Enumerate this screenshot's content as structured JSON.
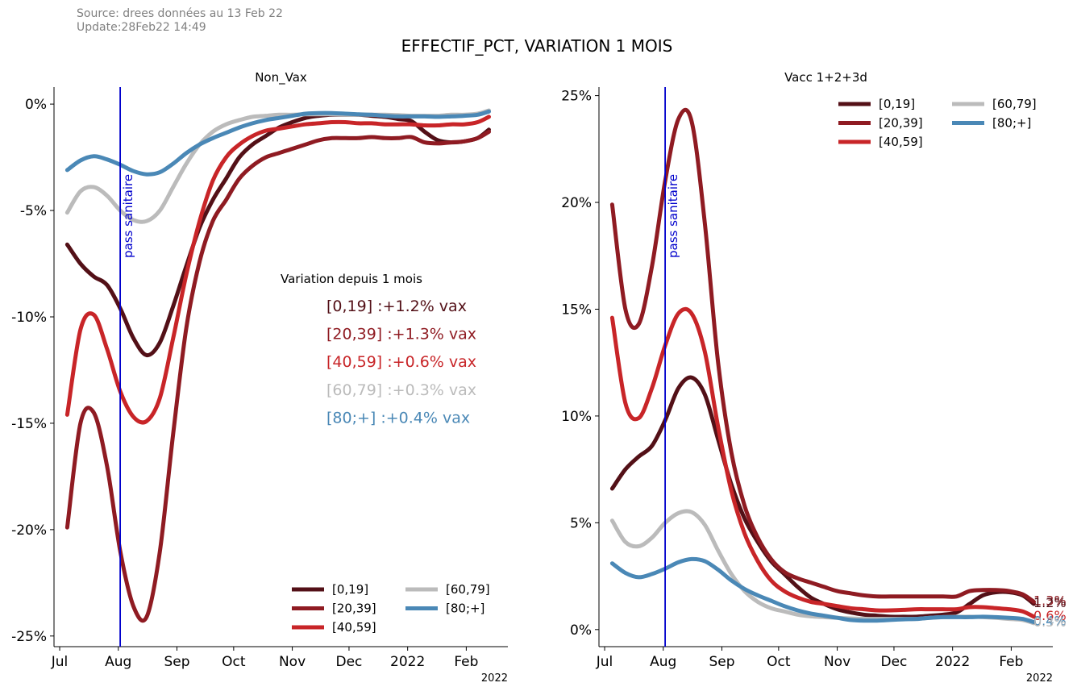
{
  "header": {
    "source": "Source: drees données au 13 Feb 22",
    "update": "Update:28Feb22 14:49",
    "title": "EFFECTIF_PCT, VARIATION 1 MOIS"
  },
  "x_ticks": [
    "Jul",
    "Aug",
    "Sep",
    "Oct",
    "Nov",
    "Dec",
    "2022",
    "Feb"
  ],
  "x_offset_label": "2022",
  "colors": {
    "[0,19]": "#531017",
    "[20,39]": "#8f1b22",
    "[40,59]": "#c82528",
    "[60,79]": "#bbbbbb",
    "[80;+]": "#4a88b6",
    "vline": "#0000cc"
  },
  "chart_data": [
    {
      "type": "line",
      "title": "Non_Vax",
      "x_dates": [
        "2021-07-05",
        "2021-07-12",
        "2021-07-19",
        "2021-07-26",
        "2021-08-02",
        "2021-08-09",
        "2021-08-16",
        "2021-08-23",
        "2021-08-30",
        "2021-09-06",
        "2021-09-13",
        "2021-09-20",
        "2021-09-27",
        "2021-10-04",
        "2021-10-11",
        "2021-10-18",
        "2021-10-25",
        "2021-11-01",
        "2021-11-08",
        "2021-11-15",
        "2021-11-22",
        "2021-11-29",
        "2021-12-06",
        "2021-12-13",
        "2021-12-20",
        "2021-12-27",
        "2022-01-03",
        "2022-01-10",
        "2022-01-17",
        "2022-01-24",
        "2022-01-31",
        "2022-02-07",
        "2022-02-13"
      ],
      "ylim": [
        -25.5,
        0.8
      ],
      "yticks": [
        0,
        -5,
        -10,
        -15,
        -20,
        -25
      ],
      "ytick_labels": [
        "0%",
        "-5%",
        "-10%",
        "-15%",
        "-20%",
        "-25%"
      ],
      "series": [
        {
          "name": "[0,19]",
          "values": [
            -6.6,
            -7.5,
            -8.1,
            -8.5,
            -9.6,
            -11.0,
            -11.8,
            -11.2,
            -9.5,
            -7.6,
            -5.8,
            -4.5,
            -3.5,
            -2.5,
            -1.9,
            -1.5,
            -1.1,
            -0.85,
            -0.65,
            -0.55,
            -0.5,
            -0.5,
            -0.5,
            -0.55,
            -0.6,
            -0.7,
            -0.8,
            -1.3,
            -1.7,
            -1.8,
            -1.75,
            -1.6,
            -1.2
          ]
        },
        {
          "name": "[20,39]",
          "values": [
            -19.9,
            -15.0,
            -14.5,
            -17.0,
            -21.0,
            -23.6,
            -24.1,
            -21.0,
            -15.5,
            -10.5,
            -7.4,
            -5.5,
            -4.5,
            -3.5,
            -2.9,
            -2.5,
            -2.3,
            -2.1,
            -1.9,
            -1.7,
            -1.6,
            -1.6,
            -1.6,
            -1.55,
            -1.6,
            -1.6,
            -1.55,
            -1.8,
            -1.85,
            -1.8,
            -1.75,
            -1.6,
            -1.3
          ]
        },
        {
          "name": "[40,59]",
          "values": [
            -14.6,
            -10.6,
            -9.9,
            -11.5,
            -13.5,
            -14.7,
            -14.9,
            -13.8,
            -11.0,
            -8.0,
            -5.5,
            -3.6,
            -2.5,
            -1.9,
            -1.5,
            -1.25,
            -1.15,
            -1.05,
            -0.95,
            -0.9,
            -0.85,
            -0.85,
            -0.9,
            -0.9,
            -0.95,
            -0.95,
            -0.95,
            -1.0,
            -1.0,
            -0.95,
            -0.95,
            -0.85,
            -0.6
          ]
        },
        {
          "name": "[60,79]",
          "values": [
            -5.1,
            -4.1,
            -3.9,
            -4.3,
            -5.0,
            -5.45,
            -5.5,
            -5.0,
            -3.9,
            -2.8,
            -1.9,
            -1.3,
            -0.95,
            -0.75,
            -0.6,
            -0.55,
            -0.5,
            -0.5,
            -0.48,
            -0.48,
            -0.48,
            -0.5,
            -0.5,
            -0.5,
            -0.5,
            -0.52,
            -0.55,
            -0.55,
            -0.55,
            -0.5,
            -0.5,
            -0.45,
            -0.3
          ]
        },
        {
          "name": "[80;+]",
          "values": [
            -3.1,
            -2.65,
            -2.45,
            -2.6,
            -2.85,
            -3.15,
            -3.3,
            -3.2,
            -2.8,
            -2.3,
            -1.9,
            -1.6,
            -1.35,
            -1.1,
            -0.9,
            -0.75,
            -0.65,
            -0.55,
            -0.45,
            -0.42,
            -0.42,
            -0.45,
            -0.48,
            -0.5,
            -0.55,
            -0.58,
            -0.58,
            -0.58,
            -0.6,
            -0.58,
            -0.55,
            -0.5,
            -0.35
          ]
        }
      ],
      "vline": {
        "date": "2021-08-02",
        "label": "pass sanitaire"
      },
      "legend": "lower-right",
      "annotation_title": "Variation depuis 1 mois",
      "annotations": [
        {
          "group": "[0,19]",
          "text": "[0,19]  :+1.2% vax"
        },
        {
          "group": "[20,39]",
          "text": "[20,39] :+1.3% vax"
        },
        {
          "group": "[40,59]",
          "text": "[40,59] :+0.6% vax"
        },
        {
          "group": "[60,79]",
          "text": "[60,79] :+0.3% vax"
        },
        {
          "group": "[80;+]",
          "text": "[80;+]  :+0.4% vax"
        }
      ]
    },
    {
      "type": "line",
      "title": "Vacc 1+2+3d",
      "x_dates": [
        "2021-07-05",
        "2021-07-12",
        "2021-07-19",
        "2021-07-26",
        "2021-08-02",
        "2021-08-09",
        "2021-08-16",
        "2021-08-23",
        "2021-08-30",
        "2021-09-06",
        "2021-09-13",
        "2021-09-20",
        "2021-09-27",
        "2021-10-04",
        "2021-10-11",
        "2021-10-18",
        "2021-10-25",
        "2021-11-01",
        "2021-11-08",
        "2021-11-15",
        "2021-11-22",
        "2021-11-29",
        "2021-12-06",
        "2021-12-13",
        "2021-12-20",
        "2021-12-27",
        "2022-01-03",
        "2022-01-10",
        "2022-01-17",
        "2022-01-24",
        "2022-01-31",
        "2022-02-07",
        "2022-02-13"
      ],
      "ylim": [
        -0.8,
        25.4
      ],
      "yticks": [
        0,
        5,
        10,
        15,
        20,
        25
      ],
      "ytick_labels": [
        "0%",
        "5%",
        "10%",
        "15%",
        "20%",
        "25%"
      ],
      "series": [
        {
          "name": "[0,19]",
          "values": [
            6.6,
            7.5,
            8.1,
            8.6,
            9.8,
            11.3,
            11.8,
            11.0,
            8.9,
            6.8,
            5.2,
            4.1,
            3.2,
            2.6,
            2.0,
            1.5,
            1.2,
            0.95,
            0.8,
            0.7,
            0.65,
            0.6,
            0.6,
            0.6,
            0.65,
            0.7,
            0.8,
            1.2,
            1.6,
            1.75,
            1.75,
            1.6,
            1.2
          ]
        },
        {
          "name": "[20,39]",
          "values": [
            19.9,
            15.0,
            14.3,
            17.0,
            21.0,
            23.9,
            23.8,
            19.0,
            12.5,
            8.3,
            5.8,
            4.3,
            3.3,
            2.7,
            2.4,
            2.2,
            2.0,
            1.8,
            1.7,
            1.6,
            1.55,
            1.55,
            1.55,
            1.55,
            1.55,
            1.55,
            1.55,
            1.8,
            1.85,
            1.85,
            1.8,
            1.65,
            1.3
          ]
        },
        {
          "name": "[40,59]",
          "values": [
            14.6,
            10.6,
            9.9,
            11.3,
            13.3,
            14.8,
            14.8,
            13.0,
            9.5,
            6.5,
            4.5,
            3.2,
            2.3,
            1.8,
            1.5,
            1.3,
            1.2,
            1.1,
            1.0,
            0.95,
            0.9,
            0.9,
            0.92,
            0.95,
            0.95,
            0.95,
            0.95,
            1.05,
            1.05,
            1.0,
            0.95,
            0.85,
            0.6
          ]
        },
        {
          "name": "[60,79]",
          "values": [
            5.1,
            4.1,
            3.9,
            4.3,
            5.0,
            5.45,
            5.5,
            4.9,
            3.7,
            2.6,
            1.8,
            1.3,
            1.0,
            0.85,
            0.7,
            0.62,
            0.58,
            0.55,
            0.52,
            0.5,
            0.5,
            0.5,
            0.5,
            0.5,
            0.55,
            0.58,
            0.6,
            0.6,
            0.58,
            0.55,
            0.5,
            0.45,
            0.3
          ]
        },
        {
          "name": "[80;+]",
          "values": [
            3.1,
            2.65,
            2.45,
            2.6,
            2.85,
            3.15,
            3.3,
            3.2,
            2.8,
            2.3,
            1.9,
            1.6,
            1.35,
            1.1,
            0.9,
            0.75,
            0.65,
            0.55,
            0.45,
            0.42,
            0.42,
            0.45,
            0.48,
            0.5,
            0.55,
            0.58,
            0.58,
            0.58,
            0.6,
            0.58,
            0.55,
            0.5,
            0.35
          ]
        }
      ],
      "vline": {
        "date": "2021-08-02",
        "label": "pass sanitaire"
      },
      "legend": "upper-right",
      "end_labels": [
        {
          "group": "[20,39]",
          "text": "1.3%"
        },
        {
          "group": "[0,19]",
          "text": "1.2%"
        },
        {
          "group": "[40,59]",
          "text": "0.6%"
        },
        {
          "group": "[80;+]",
          "text": "0.4%"
        },
        {
          "group": "[60,79]",
          "text": "0.3%"
        }
      ]
    }
  ]
}
